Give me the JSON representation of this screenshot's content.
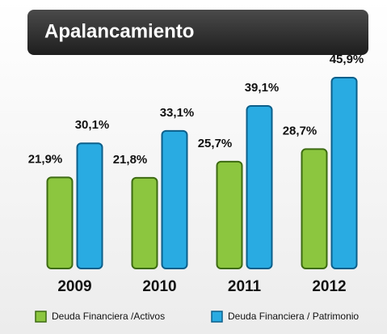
{
  "chart_data": {
    "type": "bar",
    "title": "Apalancamiento",
    "categories": [
      "2009",
      "2010",
      "2011",
      "2012"
    ],
    "series": [
      {
        "name": "Deuda Financiera /Activos",
        "color": "#8cc63f",
        "values": [
          21.9,
          21.8,
          25.7,
          28.7
        ],
        "value_labels": [
          "21,9%",
          "21,8%",
          "25,7%",
          "28,7%"
        ]
      },
      {
        "name": "Deuda Financiera / Patrimonio",
        "color": "#29abe2",
        "values": [
          30.1,
          33.1,
          39.1,
          45.9
        ],
        "value_labels": [
          "30,1%",
          "33,1%",
          "39,1%",
          "45,9%"
        ]
      }
    ]
  }
}
